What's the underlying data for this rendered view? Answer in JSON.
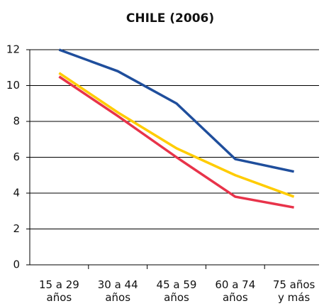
{
  "chart_data": {
    "type": "line",
    "title": "CHILE (2006)",
    "categories": [
      "15 a 29\naños",
      "30 a 44\naños",
      "45 a 59\naños",
      "60 a 74\naños",
      "75 años\ny más"
    ],
    "series": [
      {
        "color": "#1f4e9c",
        "values": [
          12,
          10.8,
          9.0,
          5.9,
          5.2
        ]
      },
      {
        "color": "#ffcc00",
        "values": [
          10.7,
          8.5,
          6.5,
          5.0,
          3.8
        ]
      },
      {
        "color": "#e8334a",
        "values": [
          10.5,
          8.3,
          6.0,
          3.8,
          3.2
        ]
      }
    ],
    "ylim": [
      0,
      12
    ],
    "yticks": [
      0,
      2,
      4,
      6,
      8,
      10,
      12
    ],
    "grid": true
  }
}
